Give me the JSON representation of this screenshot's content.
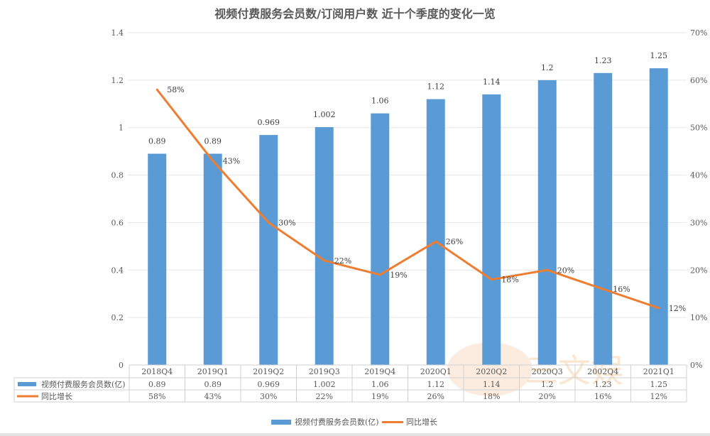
{
  "chart_data": {
    "type": "bar+line",
    "title": "视频付费服务会员数/订阅用户数 近十个季度的变化一览",
    "categories": [
      "2018Q4",
      "2019Q1",
      "2019Q2",
      "2019Q3",
      "2019Q4",
      "2020Q1",
      "2020Q2",
      "2020Q3",
      "2002Q4",
      "2021Q1"
    ],
    "series": [
      {
        "name": "视频付费服务会员数(亿)",
        "type": "bar",
        "axis": "left",
        "color": "#5b9bd5",
        "values": [
          0.89,
          0.89,
          0.969,
          1.002,
          1.06,
          1.12,
          1.14,
          1.2,
          1.23,
          1.25
        ],
        "labels": [
          "0.89",
          "0.89",
          "0.969",
          "1.002",
          "1.06",
          "1.12",
          "1.14",
          "1.2",
          "1.23",
          "1.25"
        ]
      },
      {
        "name": "同比增长",
        "type": "line",
        "axis": "right",
        "color": "#ed7d31",
        "values": [
          58,
          43,
          30,
          22,
          19,
          26,
          18,
          20,
          16,
          12
        ],
        "labels": [
          "58%",
          "43%",
          "30%",
          "22%",
          "19%",
          "26%",
          "18%",
          "20%",
          "16%",
          "12%"
        ]
      }
    ],
    "left_axis": {
      "ylim": [
        0,
        1.4
      ],
      "ticks": [
        "0",
        "0.2",
        "0.4",
        "0.6",
        "0.8",
        "1",
        "1.2",
        "1.4"
      ]
    },
    "right_axis": {
      "ylim": [
        0,
        70
      ],
      "ticks": [
        "0%",
        "10%",
        "20%",
        "30%",
        "40%",
        "50%",
        "60%",
        "70%"
      ]
    },
    "grid": true,
    "data_table": true,
    "legend_position": "bottom"
  },
  "watermark": "三文娱"
}
